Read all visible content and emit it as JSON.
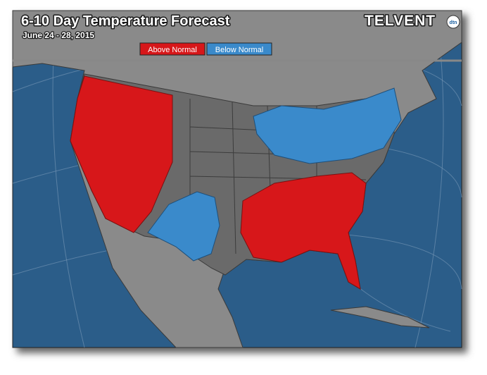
{
  "header": {
    "title": "6-10 Day Temperature Forecast",
    "subtitle": "June 24 - 28, 2015",
    "brand": "TELVENT",
    "brand_badge": "dtn"
  },
  "legend": [
    {
      "label": "Above Normal",
      "color": "#d7171a"
    },
    {
      "label": "Below Normal",
      "color": "#3a8acb"
    }
  ]
}
